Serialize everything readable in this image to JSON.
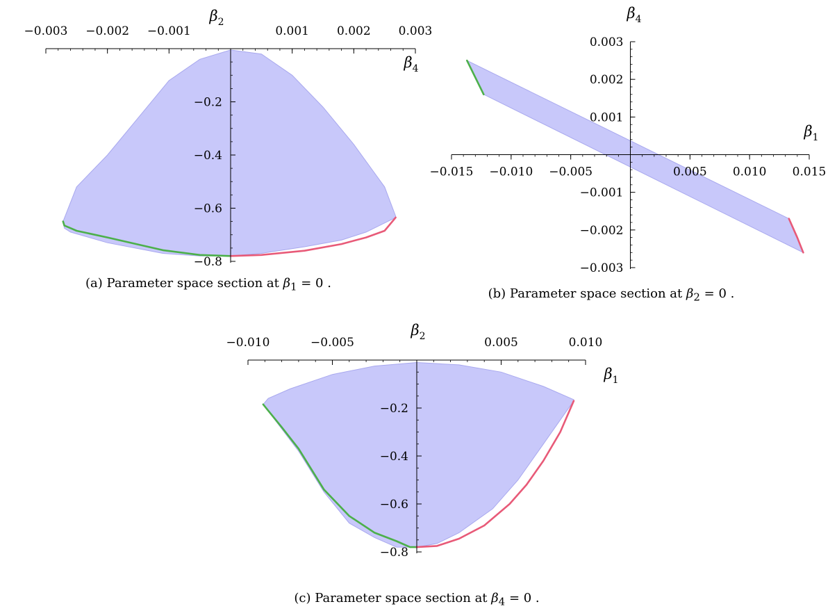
{
  "chart_data": [
    {
      "id": "a",
      "type": "area",
      "caption": {
        "prefix": "(a) Parameter space section at ",
        "symbol": "β",
        "sub": "1",
        "suffix": " = 0 ."
      },
      "xlabel": {
        "symbol": "β",
        "sub": "4"
      },
      "ylabel": {
        "symbol": "β",
        "sub": "2"
      },
      "xlim": [
        -0.003,
        0.003
      ],
      "ylim": [
        -0.8,
        0
      ],
      "x_ticks": [
        -0.003,
        -0.002,
        -0.001,
        0.001,
        0.002,
        0.003
      ],
      "x_tick_labels": [
        "−0.003",
        "−0.002",
        "−0.001",
        "0.001",
        "0.002",
        "0.003"
      ],
      "y_ticks": [
        -0.2,
        -0.4,
        -0.6,
        -0.8
      ],
      "y_tick_labels": [
        "−0.2",
        "−0.4",
        "−0.6",
        "−0.8"
      ],
      "x_axis_position": "top",
      "region": {
        "color": "#c8c8fa",
        "outline": "#a8a8ee",
        "points": [
          [
            -0.00272,
            -0.65
          ],
          [
            -0.0025,
            -0.52
          ],
          [
            -0.002,
            -0.4
          ],
          [
            -0.0015,
            -0.26
          ],
          [
            -0.001,
            -0.12
          ],
          [
            -0.0005,
            -0.04
          ],
          [
            0.0,
            -0.005
          ],
          [
            0.0005,
            -0.02
          ],
          [
            0.001,
            -0.1
          ],
          [
            0.0015,
            -0.22
          ],
          [
            0.002,
            -0.36
          ],
          [
            0.0025,
            -0.52
          ],
          [
            0.00268,
            -0.63
          ],
          [
            0.00268,
            -0.635
          ],
          [
            0.0022,
            -0.69
          ],
          [
            0.0018,
            -0.72
          ],
          [
            0.0012,
            -0.745
          ],
          [
            0.0005,
            -0.77
          ],
          [
            0.0,
            -0.78
          ],
          [
            -0.0005,
            -0.78
          ],
          [
            -0.0011,
            -0.77
          ],
          [
            -0.002,
            -0.73
          ],
          [
            -0.0026,
            -0.69
          ],
          [
            -0.0027,
            -0.675
          ]
        ]
      },
      "boundaries": [
        {
          "color": "#4cb04a",
          "points": [
            [
              -0.00272,
              -0.65
            ],
            [
              -0.0027,
              -0.665
            ],
            [
              -0.0026,
              -0.675
            ],
            [
              -0.0025,
              -0.685
            ],
            [
              -0.002,
              -0.71
            ],
            [
              -0.0011,
              -0.758
            ],
            [
              -0.0005,
              -0.776
            ],
            [
              0.0,
              -0.78
            ]
          ]
        },
        {
          "color": "#e85a78",
          "points": [
            [
              0.0,
              -0.78
            ],
            [
              0.0005,
              -0.776
            ],
            [
              0.0012,
              -0.76
            ],
            [
              0.0018,
              -0.735
            ],
            [
              0.0022,
              -0.71
            ],
            [
              0.0025,
              -0.685
            ],
            [
              0.00268,
              -0.635
            ]
          ]
        }
      ]
    },
    {
      "id": "b",
      "type": "area",
      "caption": {
        "prefix": "(b) Parameter space section at ",
        "symbol": "β",
        "sub": "2",
        "suffix": " = 0 ."
      },
      "xlabel": {
        "symbol": "β",
        "sub": "1"
      },
      "ylabel": {
        "symbol": "β",
        "sub": "4"
      },
      "xlim": [
        -0.015,
        0.015
      ],
      "ylim": [
        -0.003,
        0.003
      ],
      "x_ticks": [
        -0.015,
        -0.01,
        -0.005,
        0.005,
        0.01,
        0.015
      ],
      "x_tick_labels": [
        "−0.015",
        "−0.010",
        "−0.005",
        "0.005",
        "0.010",
        "0.015"
      ],
      "y_ticks": [
        0.003,
        0.002,
        0.001,
        -0.001,
        -0.002,
        -0.003
      ],
      "y_tick_labels": [
        "0.003",
        "0.002",
        "0.001",
        "−0.001",
        "−0.002",
        "−0.003"
      ],
      "x_axis_position": "zero",
      "region": {
        "color": "#c8c8fa",
        "outline": "#a8a8ee",
        "points": [
          [
            -0.0137,
            0.0025
          ],
          [
            0.0133,
            -0.0017
          ],
          [
            0.0145,
            -0.0026
          ],
          [
            -0.0123,
            0.0016
          ]
        ]
      },
      "boundaries": [
        {
          "color": "#4cb04a",
          "points": [
            [
              -0.0137,
              0.0025
            ],
            [
              -0.0123,
              0.0016
            ]
          ]
        },
        {
          "color": "#e85a78",
          "points": [
            [
              0.0133,
              -0.0017
            ],
            [
              0.014,
              -0.0022
            ],
            [
              0.0145,
              -0.0026
            ]
          ]
        }
      ]
    },
    {
      "id": "c",
      "type": "area",
      "caption": {
        "prefix": "(c) Parameter space section at ",
        "symbol": "β",
        "sub": "4",
        "suffix": " = 0 ."
      },
      "xlabel": {
        "symbol": "β",
        "sub": "1"
      },
      "ylabel": {
        "symbol": "β",
        "sub": "2"
      },
      "xlim": [
        -0.01,
        0.01
      ],
      "ylim": [
        -0.8,
        0
      ],
      "x_ticks": [
        -0.01,
        -0.005,
        0.005,
        0.01
      ],
      "x_tick_labels": [
        "−0.010",
        "−0.005",
        "0.005",
        "0.010"
      ],
      "y_ticks": [
        -0.2,
        -0.4,
        -0.6,
        -0.8
      ],
      "y_tick_labels": [
        "−0.2",
        "−0.4",
        "−0.6",
        "−0.8"
      ],
      "x_axis_position": "top",
      "region": {
        "color": "#c8c8fa",
        "outline": "#a8a8ee",
        "points": [
          [
            -0.0091,
            -0.185
          ],
          [
            -0.0088,
            -0.16
          ],
          [
            -0.0075,
            -0.12
          ],
          [
            -0.005,
            -0.06
          ],
          [
            -0.0025,
            -0.025
          ],
          [
            0.0,
            -0.01
          ],
          [
            0.0025,
            -0.02
          ],
          [
            0.005,
            -0.05
          ],
          [
            0.0075,
            -0.11
          ],
          [
            0.0093,
            -0.165
          ],
          [
            0.0093,
            -0.17
          ],
          [
            0.0088,
            -0.22
          ],
          [
            0.0075,
            -0.35
          ],
          [
            0.006,
            -0.5
          ],
          [
            0.0045,
            -0.62
          ],
          [
            0.0025,
            -0.72
          ],
          [
            0.0012,
            -0.765
          ],
          [
            0.0,
            -0.78
          ],
          [
            -0.0012,
            -0.78
          ],
          [
            -0.0025,
            -0.74
          ],
          [
            -0.004,
            -0.68
          ],
          [
            -0.0055,
            -0.55
          ],
          [
            -0.007,
            -0.38
          ],
          [
            -0.0091,
            -0.185
          ]
        ]
      },
      "boundaries": [
        {
          "color": "#4cb04a",
          "points": [
            [
              -0.0091,
              -0.185
            ],
            [
              -0.008,
              -0.28
            ],
            [
              -0.007,
              -0.37
            ],
            [
              -0.0055,
              -0.54
            ],
            [
              -0.004,
              -0.65
            ],
            [
              -0.0025,
              -0.72
            ],
            [
              -0.0012,
              -0.755
            ],
            [
              -0.0004,
              -0.78
            ],
            [
              0.0,
              -0.78
            ]
          ]
        },
        {
          "color": "#e85a78",
          "points": [
            [
              0.0,
              -0.78
            ],
            [
              0.0012,
              -0.775
            ],
            [
              0.0025,
              -0.745
            ],
            [
              0.004,
              -0.69
            ],
            [
              0.0055,
              -0.6
            ],
            [
              0.0065,
              -0.52
            ],
            [
              0.0075,
              -0.42
            ],
            [
              0.0085,
              -0.3
            ],
            [
              0.0093,
              -0.17
            ]
          ]
        }
      ]
    }
  ]
}
